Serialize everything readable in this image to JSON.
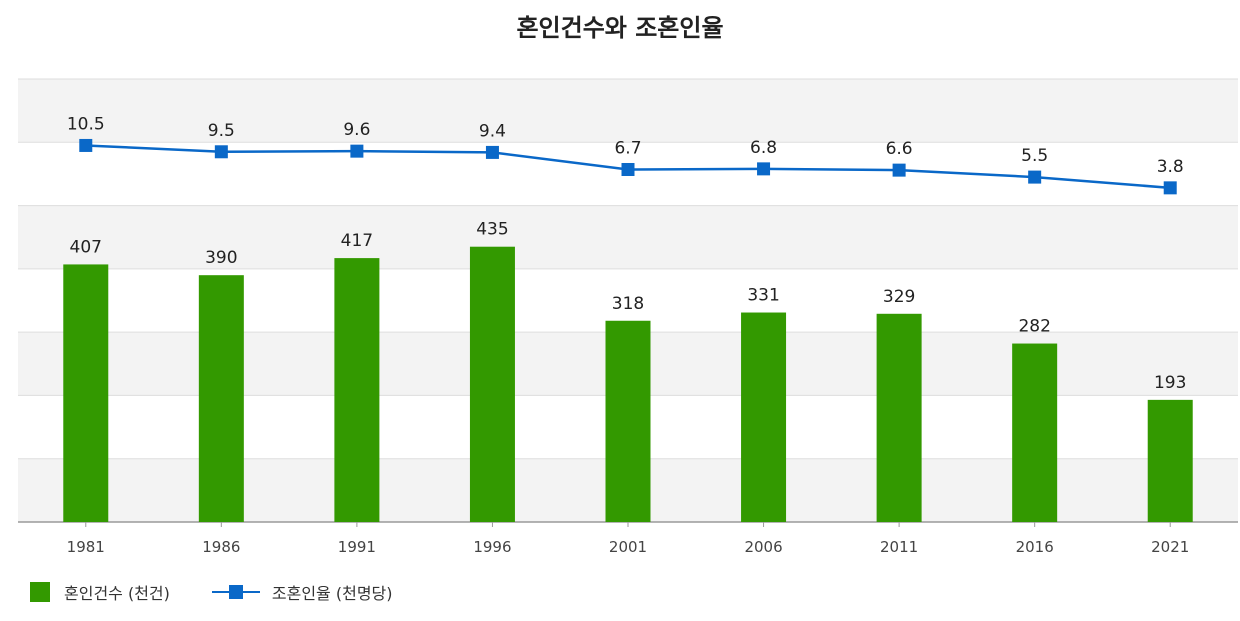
{
  "chart_data": {
    "type": "bar+line",
    "title": "혼인건수와 조혼인율",
    "categories": [
      "1981",
      "1986",
      "1991",
      "1996",
      "2001",
      "2006",
      "2011",
      "2016",
      "2021"
    ],
    "series": [
      {
        "name": "혼인건수 (천건)",
        "type": "bar",
        "color": "#339900",
        "values": [
          407,
          390,
          417,
          435,
          318,
          331,
          329,
          282,
          193
        ],
        "ylim": [
          0,
          700
        ]
      },
      {
        "name": "조혼인율 (천명당)",
        "type": "line",
        "color": "#0a68c8",
        "values": [
          10.5,
          9.5,
          9.6,
          9.4,
          6.7,
          6.8,
          6.6,
          5.5,
          3.8
        ],
        "labels": [
          "10.5",
          "9.5",
          "9.6",
          "9.4",
          "6.7",
          "6.8",
          "6.6",
          "5.5",
          "3.8"
        ],
        "ylim": [
          -49,
          21
        ]
      }
    ],
    "grid": true,
    "legend": "bottom-left"
  }
}
